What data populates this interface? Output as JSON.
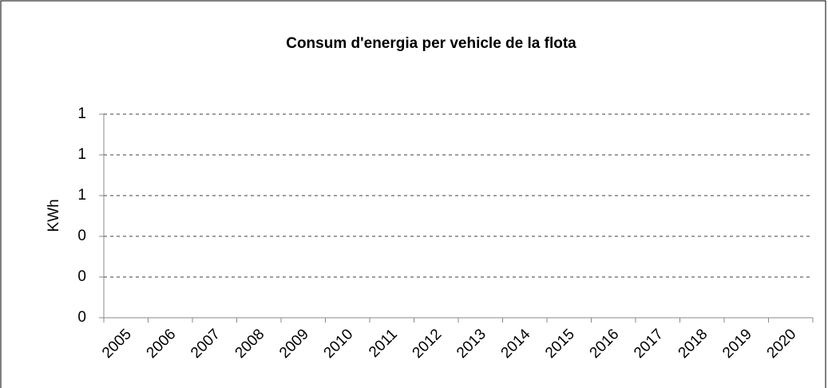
{
  "chart_data": {
    "type": "line",
    "title": "Consum d'energia per vehicle de la flota",
    "y_label": "KWh",
    "categories": [
      "2005",
      "2006",
      "2007",
      "2008",
      "2009",
      "2010",
      "2011",
      "2012",
      "2013",
      "2014",
      "2015",
      "2016",
      "2017",
      "2018",
      "2019",
      "2020"
    ],
    "ylim": [
      0,
      1
    ],
    "yticks": [
      0,
      {
        "value": 0.2,
        "label": "0"
      },
      {
        "value": 0.4,
        "label": "0"
      },
      {
        "value": 0.6,
        "label": "1"
      },
      {
        "value": 0.8,
        "label": "1"
      },
      1
    ],
    "grid": true
  }
}
